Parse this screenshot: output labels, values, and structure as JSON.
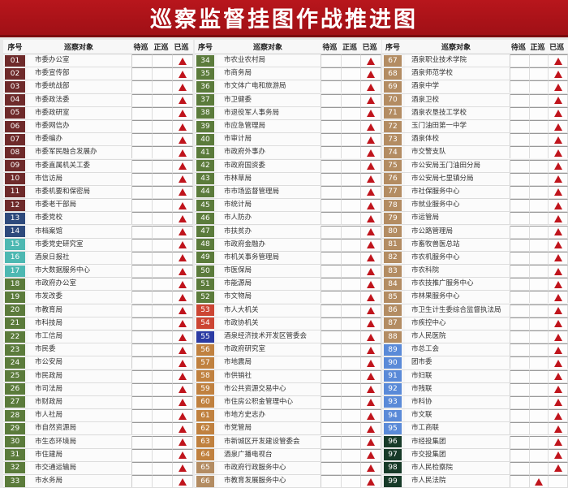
{
  "title": "巡察监督挂图作战推进图",
  "headers": {
    "no": "序号",
    "target": "巡察对象",
    "pending": "待巡",
    "ongoing": "正巡",
    "done": "已巡"
  },
  "group_colors": [
    {
      "from": 1,
      "to": 12,
      "color": "#6e2a2a"
    },
    {
      "from": 13,
      "to": 14,
      "color": "#2e4a7c"
    },
    {
      "from": 15,
      "to": 17,
      "color": "#4db8b2"
    },
    {
      "from": 18,
      "to": 52,
      "color": "#5b7b3b"
    },
    {
      "from": 53,
      "to": 54,
      "color": "#cc4533"
    },
    {
      "from": 55,
      "to": 55,
      "color": "#2b3ba3"
    },
    {
      "from": 56,
      "to": 64,
      "color": "#c0813f"
    },
    {
      "from": 65,
      "to": 88,
      "color": "#b38c62"
    },
    {
      "from": 89,
      "to": 95,
      "color": "#5a8ad8"
    },
    {
      "from": 96,
      "to": 99,
      "color": "#173a28"
    }
  ],
  "columns": [
    {
      "items": [
        {
          "no": "01",
          "name": "市委办公室",
          "status": "已巡"
        },
        {
          "no": "02",
          "name": "市委宣传部",
          "status": "已巡"
        },
        {
          "no": "03",
          "name": "市委统战部",
          "status": "已巡"
        },
        {
          "no": "04",
          "name": "市委政法委",
          "status": "已巡"
        },
        {
          "no": "05",
          "name": "市委政研室",
          "status": "已巡"
        },
        {
          "no": "06",
          "name": "市委网信办",
          "status": "已巡"
        },
        {
          "no": "07",
          "name": "市委编办",
          "status": "已巡"
        },
        {
          "no": "08",
          "name": "市委军民融合发展办",
          "status": "已巡"
        },
        {
          "no": "09",
          "name": "市委直属机关工委",
          "status": "已巡"
        },
        {
          "no": "10",
          "name": "市信访局",
          "status": "已巡"
        },
        {
          "no": "11",
          "name": "市委机要和保密局",
          "status": "已巡"
        },
        {
          "no": "12",
          "name": "市委老干部局",
          "status": "已巡"
        },
        {
          "no": "13",
          "name": "市委党校",
          "status": "已巡"
        },
        {
          "no": "14",
          "name": "市档案馆",
          "status": "已巡"
        },
        {
          "no": "15",
          "name": "市委党史研究室",
          "status": "已巡"
        },
        {
          "no": "16",
          "name": "酒泉日报社",
          "status": "已巡"
        },
        {
          "no": "17",
          "name": "市大数据服务中心",
          "status": "已巡"
        },
        {
          "no": "18",
          "name": "市政府办公室",
          "status": "已巡"
        },
        {
          "no": "19",
          "name": "市发改委",
          "status": "已巡"
        },
        {
          "no": "20",
          "name": "市教育局",
          "status": "已巡"
        },
        {
          "no": "21",
          "name": "市科技局",
          "status": "已巡"
        },
        {
          "no": "22",
          "name": "市工信局",
          "status": "已巡"
        },
        {
          "no": "23",
          "name": "市民委",
          "status": "已巡"
        },
        {
          "no": "24",
          "name": "市公安局",
          "status": "已巡"
        },
        {
          "no": "25",
          "name": "市民政局",
          "status": "已巡"
        },
        {
          "no": "26",
          "name": "市司法局",
          "status": "已巡"
        },
        {
          "no": "27",
          "name": "市财政局",
          "status": "已巡"
        },
        {
          "no": "28",
          "name": "市人社局",
          "status": "已巡"
        },
        {
          "no": "29",
          "name": "市自然资源局",
          "status": "已巡"
        },
        {
          "no": "30",
          "name": "市生态环境局",
          "status": "已巡"
        },
        {
          "no": "31",
          "name": "市住建局",
          "status": "已巡"
        },
        {
          "no": "32",
          "name": "市交通运输局",
          "status": "已巡"
        },
        {
          "no": "33",
          "name": "市水务局",
          "status": "已巡"
        }
      ]
    },
    {
      "items": [
        {
          "no": "34",
          "name": "市农业农村局",
          "status": "已巡"
        },
        {
          "no": "35",
          "name": "市商务局",
          "status": "已巡"
        },
        {
          "no": "36",
          "name": "市文体广电和旅游局",
          "status": "已巡"
        },
        {
          "no": "37",
          "name": "市卫健委",
          "status": "已巡"
        },
        {
          "no": "38",
          "name": "市退役军人事务局",
          "status": "已巡"
        },
        {
          "no": "39",
          "name": "市应急管理局",
          "status": "已巡"
        },
        {
          "no": "40",
          "name": "市审计局",
          "status": "已巡"
        },
        {
          "no": "41",
          "name": "市政府外事办",
          "status": "已巡"
        },
        {
          "no": "42",
          "name": "市政府国资委",
          "status": "已巡"
        },
        {
          "no": "43",
          "name": "市林草局",
          "status": "已巡"
        },
        {
          "no": "44",
          "name": "市市场监督管理局",
          "status": "已巡"
        },
        {
          "no": "45",
          "name": "市统计局",
          "status": "已巡"
        },
        {
          "no": "46",
          "name": "市人防办",
          "status": "已巡"
        },
        {
          "no": "47",
          "name": "市扶贫办",
          "status": "已巡"
        },
        {
          "no": "48",
          "name": "市政府金融办",
          "status": "已巡"
        },
        {
          "no": "49",
          "name": "市机关事务管理局",
          "status": "已巡"
        },
        {
          "no": "50",
          "name": "市医保局",
          "status": "已巡"
        },
        {
          "no": "51",
          "name": "市能源局",
          "status": "已巡"
        },
        {
          "no": "52",
          "name": "市文物局",
          "status": "已巡"
        },
        {
          "no": "53",
          "name": "市人大机关",
          "status": "已巡"
        },
        {
          "no": "54",
          "name": "市政协机关",
          "status": "已巡"
        },
        {
          "no": "55",
          "name": "酒泉经济技术开发区管委会",
          "status": "已巡"
        },
        {
          "no": "56",
          "name": "市政府研究室",
          "status": "已巡"
        },
        {
          "no": "57",
          "name": "市地震局",
          "status": "已巡"
        },
        {
          "no": "58",
          "name": "市供销社",
          "status": "已巡"
        },
        {
          "no": "59",
          "name": "市公共资源交易中心",
          "status": "已巡"
        },
        {
          "no": "60",
          "name": "市住房公积金管理中心",
          "status": "已巡"
        },
        {
          "no": "61",
          "name": "市地方史志办",
          "status": "已巡"
        },
        {
          "no": "62",
          "name": "市党管局",
          "status": "已巡"
        },
        {
          "no": "63",
          "name": "市新城区开发建设管委会",
          "status": "已巡"
        },
        {
          "no": "64",
          "name": "酒泉广播电视台",
          "status": "已巡"
        },
        {
          "no": "65",
          "name": "市政府行政服务中心",
          "status": "已巡"
        },
        {
          "no": "66",
          "name": "市教育发展服务中心",
          "status": "已巡"
        }
      ]
    },
    {
      "items": [
        {
          "no": "67",
          "name": "酒泉职业技术学院",
          "status": "已巡"
        },
        {
          "no": "68",
          "name": "酒泉师范学校",
          "status": "已巡"
        },
        {
          "no": "69",
          "name": "酒泉中学",
          "status": "已巡"
        },
        {
          "no": "70",
          "name": "酒泉卫校",
          "status": "已巡"
        },
        {
          "no": "71",
          "name": "酒泉农垦技工学校",
          "status": "已巡"
        },
        {
          "no": "72",
          "name": "玉门油田第一中学",
          "status": "已巡"
        },
        {
          "no": "73",
          "name": "酒泉体校",
          "status": "已巡"
        },
        {
          "no": "74",
          "name": "市交警支队",
          "status": "已巡"
        },
        {
          "no": "75",
          "name": "市公安局玉门油田分局",
          "status": "已巡"
        },
        {
          "no": "76",
          "name": "市公安局七里镇分局",
          "status": "已巡"
        },
        {
          "no": "77",
          "name": "市社保服务中心",
          "status": "已巡"
        },
        {
          "no": "78",
          "name": "市就业服务中心",
          "status": "已巡"
        },
        {
          "no": "79",
          "name": "市运管局",
          "status": "已巡"
        },
        {
          "no": "80",
          "name": "市公路管理局",
          "status": "已巡"
        },
        {
          "no": "81",
          "name": "市畜牧兽医总站",
          "status": "已巡"
        },
        {
          "no": "82",
          "name": "市农机服务中心",
          "status": "已巡"
        },
        {
          "no": "83",
          "name": "市农科院",
          "status": "已巡"
        },
        {
          "no": "84",
          "name": "市农技推广服务中心",
          "status": "已巡"
        },
        {
          "no": "85",
          "name": "市林果服务中心",
          "status": "已巡"
        },
        {
          "no": "86",
          "name": "市卫生计生委综合监督执法局",
          "status": "已巡"
        },
        {
          "no": "87",
          "name": "市疾控中心",
          "status": "已巡"
        },
        {
          "no": "88",
          "name": "市人民医院",
          "status": "已巡"
        },
        {
          "no": "89",
          "name": "市总工会",
          "status": "已巡"
        },
        {
          "no": "90",
          "name": "团市委",
          "status": "已巡"
        },
        {
          "no": "91",
          "name": "市妇联",
          "status": "已巡"
        },
        {
          "no": "92",
          "name": "市残联",
          "status": "已巡"
        },
        {
          "no": "93",
          "name": "市科协",
          "status": "已巡"
        },
        {
          "no": "94",
          "name": "市文联",
          "status": "已巡"
        },
        {
          "no": "95",
          "name": "市工商联",
          "status": "已巡"
        },
        {
          "no": "96",
          "name": "市经投集团",
          "status": "已巡"
        },
        {
          "no": "97",
          "name": "市交投集团",
          "status": "已巡"
        },
        {
          "no": "98",
          "name": "市人民检察院",
          "status": "已巡"
        },
        {
          "no": "99",
          "name": "市人民法院",
          "status": "正巡"
        }
      ]
    }
  ]
}
